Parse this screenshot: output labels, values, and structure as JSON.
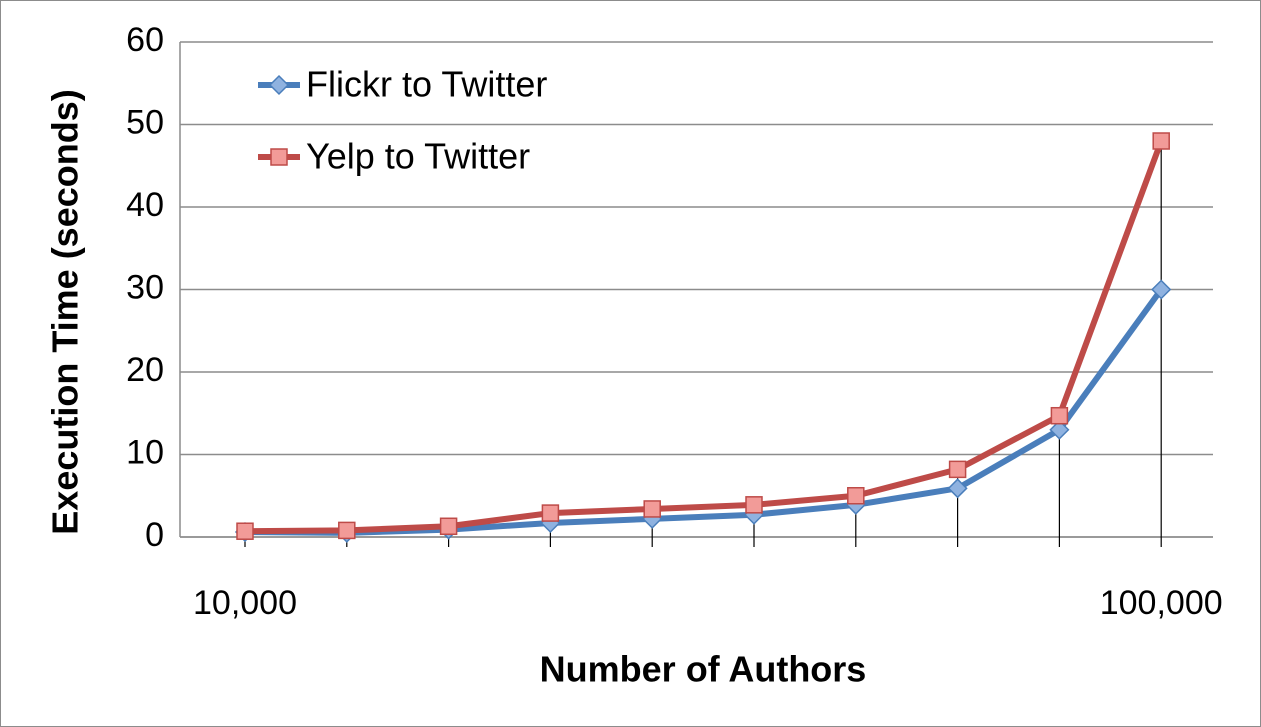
{
  "chart_data": {
    "type": "line",
    "x_label": "Number of Authors",
    "y_label": "Execution Time (seconds)",
    "categories": [
      "10,000",
      null,
      null,
      null,
      null,
      null,
      null,
      null,
      null,
      "100,000"
    ],
    "series": [
      {
        "name": "Flickr to Twitter",
        "color": "#4a7ebb",
        "marker": "diamond",
        "values": [
          0.6,
          0.5,
          0.9,
          1.7,
          2.2,
          2.7,
          3.9,
          5.9,
          13,
          30
        ]
      },
      {
        "name": "Yelp to Twitter",
        "color": "#be4b48",
        "marker": "square",
        "values": [
          0.7,
          0.8,
          1.3,
          2.9,
          3.4,
          3.9,
          5.0,
          8.2,
          14.7,
          48
        ]
      }
    ],
    "ylim": [
      0,
      60
    ],
    "yticks": [
      0,
      10,
      20,
      30,
      40,
      50,
      60
    ],
    "grid": true,
    "drop_lines": true,
    "legend": "top-left"
  }
}
